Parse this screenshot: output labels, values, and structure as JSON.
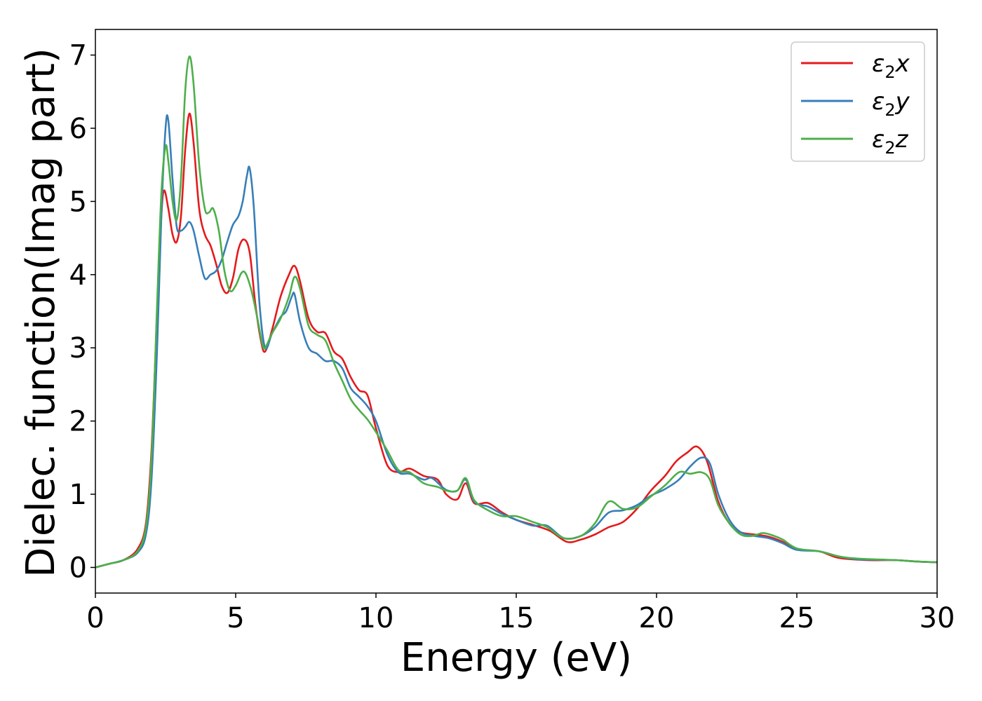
{
  "chart_data": {
    "type": "line",
    "title": "",
    "xlabel": "Energy (eV)",
    "ylabel": "Dielec. function(Imag part)",
    "xlim": [
      0,
      30
    ],
    "ylim": [
      -0.35,
      7.35
    ],
    "xticks": [
      "0",
      "5",
      "10",
      "15",
      "20",
      "25",
      "30"
    ],
    "yticks": [
      "0",
      "1",
      "2",
      "3",
      "4",
      "5",
      "6",
      "7"
    ],
    "grid": false,
    "legend": {
      "placement": "top-right"
    },
    "series": [
      {
        "name": "ε₂x",
        "legend": {
          "base": "ε",
          "sub": "2",
          "suffix": "x"
        },
        "color": "#e41a1c",
        "points": [
          [
            0,
            0
          ],
          [
            0.5,
            0.05
          ],
          [
            1,
            0.1
          ],
          [
            1.5,
            0.25
          ],
          [
            1.8,
            0.6
          ],
          [
            2.0,
            1.6
          ],
          [
            2.2,
            3.5
          ],
          [
            2.35,
            4.8
          ],
          [
            2.45,
            5.15
          ],
          [
            2.6,
            4.9
          ],
          [
            2.75,
            4.55
          ],
          [
            2.9,
            4.45
          ],
          [
            3.05,
            4.8
          ],
          [
            3.2,
            5.7
          ],
          [
            3.35,
            6.2
          ],
          [
            3.5,
            5.8
          ],
          [
            3.7,
            4.9
          ],
          [
            3.9,
            4.55
          ],
          [
            4.1,
            4.4
          ],
          [
            4.3,
            4.15
          ],
          [
            4.5,
            3.85
          ],
          [
            4.7,
            3.75
          ],
          [
            4.9,
            3.95
          ],
          [
            5.1,
            4.35
          ],
          [
            5.3,
            4.48
          ],
          [
            5.5,
            4.3
          ],
          [
            5.7,
            3.6
          ],
          [
            5.9,
            3.1
          ],
          [
            6.05,
            2.95
          ],
          [
            6.3,
            3.25
          ],
          [
            6.6,
            3.7
          ],
          [
            6.9,
            4.0
          ],
          [
            7.1,
            4.12
          ],
          [
            7.3,
            3.9
          ],
          [
            7.6,
            3.4
          ],
          [
            7.9,
            3.22
          ],
          [
            8.2,
            3.2
          ],
          [
            8.5,
            2.95
          ],
          [
            8.8,
            2.85
          ],
          [
            9.1,
            2.6
          ],
          [
            9.4,
            2.42
          ],
          [
            9.7,
            2.35
          ],
          [
            10.0,
            1.9
          ],
          [
            10.4,
            1.4
          ],
          [
            10.8,
            1.3
          ],
          [
            11.2,
            1.35
          ],
          [
            11.7,
            1.25
          ],
          [
            12.2,
            1.2
          ],
          [
            12.5,
            1.0
          ],
          [
            12.9,
            0.93
          ],
          [
            13.2,
            1.15
          ],
          [
            13.5,
            0.88
          ],
          [
            14.0,
            0.88
          ],
          [
            14.5,
            0.75
          ],
          [
            15.0,
            0.65
          ],
          [
            15.6,
            0.58
          ],
          [
            16.2,
            0.5
          ],
          [
            16.8,
            0.35
          ],
          [
            17.3,
            0.38
          ],
          [
            17.8,
            0.45
          ],
          [
            18.3,
            0.55
          ],
          [
            18.8,
            0.62
          ],
          [
            19.3,
            0.8
          ],
          [
            19.8,
            1.05
          ],
          [
            20.3,
            1.25
          ],
          [
            20.7,
            1.45
          ],
          [
            21.1,
            1.57
          ],
          [
            21.45,
            1.65
          ],
          [
            21.8,
            1.45
          ],
          [
            22.2,
            0.9
          ],
          [
            22.6,
            0.6
          ],
          [
            23.0,
            0.48
          ],
          [
            23.5,
            0.45
          ],
          [
            24.0,
            0.42
          ],
          [
            24.5,
            0.35
          ],
          [
            25.0,
            0.25
          ],
          [
            25.8,
            0.22
          ],
          [
            26.5,
            0.13
          ],
          [
            27.5,
            0.1
          ],
          [
            28.5,
            0.1
          ],
          [
            29.3,
            0.08
          ],
          [
            30,
            0.07
          ]
        ]
      },
      {
        "name": "ε₂y",
        "legend": {
          "base": "ε",
          "sub": "2",
          "suffix": "y"
        },
        "color": "#377eb8",
        "points": [
          [
            0,
            0
          ],
          [
            0.5,
            0.05
          ],
          [
            1,
            0.1
          ],
          [
            1.5,
            0.2
          ],
          [
            1.8,
            0.45
          ],
          [
            2.0,
            1.2
          ],
          [
            2.2,
            3.0
          ],
          [
            2.35,
            4.8
          ],
          [
            2.5,
            6.0
          ],
          [
            2.6,
            6.1
          ],
          [
            2.75,
            5.3
          ],
          [
            2.9,
            4.65
          ],
          [
            3.05,
            4.6
          ],
          [
            3.2,
            4.65
          ],
          [
            3.35,
            4.72
          ],
          [
            3.5,
            4.6
          ],
          [
            3.7,
            4.25
          ],
          [
            3.9,
            3.95
          ],
          [
            4.1,
            4.0
          ],
          [
            4.3,
            4.05
          ],
          [
            4.5,
            4.2
          ],
          [
            4.7,
            4.45
          ],
          [
            4.9,
            4.68
          ],
          [
            5.1,
            4.8
          ],
          [
            5.25,
            5.0
          ],
          [
            5.4,
            5.35
          ],
          [
            5.5,
            5.45
          ],
          [
            5.65,
            4.9
          ],
          [
            5.85,
            3.6
          ],
          [
            6.05,
            3.0
          ],
          [
            6.3,
            3.2
          ],
          [
            6.6,
            3.42
          ],
          [
            6.8,
            3.5
          ],
          [
            7.0,
            3.7
          ],
          [
            7.1,
            3.73
          ],
          [
            7.3,
            3.35
          ],
          [
            7.6,
            3.0
          ],
          [
            7.9,
            2.92
          ],
          [
            8.2,
            2.82
          ],
          [
            8.5,
            2.82
          ],
          [
            8.8,
            2.72
          ],
          [
            9.1,
            2.45
          ],
          [
            9.4,
            2.33
          ],
          [
            9.7,
            2.2
          ],
          [
            10.0,
            2.0
          ],
          [
            10.4,
            1.55
          ],
          [
            10.8,
            1.3
          ],
          [
            11.2,
            1.28
          ],
          [
            11.7,
            1.2
          ],
          [
            12.0,
            1.22
          ],
          [
            12.5,
            1.06
          ],
          [
            12.9,
            1.05
          ],
          [
            13.2,
            1.2
          ],
          [
            13.5,
            0.9
          ],
          [
            14.0,
            0.83
          ],
          [
            14.5,
            0.73
          ],
          [
            15.0,
            0.65
          ],
          [
            15.6,
            0.57
          ],
          [
            16.1,
            0.57
          ],
          [
            16.7,
            0.4
          ],
          [
            17.3,
            0.43
          ],
          [
            17.8,
            0.55
          ],
          [
            18.3,
            0.75
          ],
          [
            18.8,
            0.78
          ],
          [
            19.3,
            0.85
          ],
          [
            19.8,
            0.98
          ],
          [
            20.3,
            1.07
          ],
          [
            20.8,
            1.2
          ],
          [
            21.2,
            1.38
          ],
          [
            21.6,
            1.5
          ],
          [
            21.9,
            1.42
          ],
          [
            22.2,
            1.0
          ],
          [
            22.6,
            0.65
          ],
          [
            23.0,
            0.48
          ],
          [
            23.5,
            0.43
          ],
          [
            24.0,
            0.4
          ],
          [
            24.5,
            0.33
          ],
          [
            25.0,
            0.24
          ],
          [
            25.8,
            0.22
          ],
          [
            26.5,
            0.15
          ],
          [
            27.2,
            0.11
          ],
          [
            28.5,
            0.1
          ],
          [
            29.3,
            0.08
          ],
          [
            30,
            0.07
          ]
        ]
      },
      {
        "name": "ε₂z",
        "legend": {
          "base": "ε",
          "sub": "2",
          "suffix": "z"
        },
        "color": "#4daf4a",
        "points": [
          [
            0,
            0
          ],
          [
            0.5,
            0.05
          ],
          [
            1,
            0.1
          ],
          [
            1.5,
            0.22
          ],
          [
            1.8,
            0.55
          ],
          [
            2.0,
            1.5
          ],
          [
            2.2,
            3.6
          ],
          [
            2.35,
            5.1
          ],
          [
            2.5,
            5.75
          ],
          [
            2.6,
            5.55
          ],
          [
            2.75,
            5.0
          ],
          [
            2.9,
            4.75
          ],
          [
            3.05,
            5.3
          ],
          [
            3.2,
            6.5
          ],
          [
            3.35,
            6.98
          ],
          [
            3.5,
            6.6
          ],
          [
            3.7,
            5.5
          ],
          [
            3.9,
            4.9
          ],
          [
            4.05,
            4.85
          ],
          [
            4.2,
            4.9
          ],
          [
            4.4,
            4.6
          ],
          [
            4.6,
            4.05
          ],
          [
            4.8,
            3.78
          ],
          [
            5.0,
            3.85
          ],
          [
            5.2,
            4.02
          ],
          [
            5.35,
            4.02
          ],
          [
            5.55,
            3.8
          ],
          [
            5.75,
            3.45
          ],
          [
            5.95,
            3.05
          ],
          [
            6.05,
            3.0
          ],
          [
            6.3,
            3.2
          ],
          [
            6.6,
            3.4
          ],
          [
            6.9,
            3.7
          ],
          [
            7.1,
            3.97
          ],
          [
            7.3,
            3.8
          ],
          [
            7.6,
            3.3
          ],
          [
            7.9,
            3.18
          ],
          [
            8.2,
            3.1
          ],
          [
            8.5,
            2.8
          ],
          [
            8.8,
            2.55
          ],
          [
            9.1,
            2.3
          ],
          [
            9.4,
            2.15
          ],
          [
            9.7,
            2.02
          ],
          [
            10.0,
            1.85
          ],
          [
            10.4,
            1.6
          ],
          [
            10.8,
            1.33
          ],
          [
            11.2,
            1.3
          ],
          [
            11.7,
            1.15
          ],
          [
            12.2,
            1.1
          ],
          [
            12.5,
            1.05
          ],
          [
            12.9,
            1.05
          ],
          [
            13.2,
            1.22
          ],
          [
            13.5,
            0.92
          ],
          [
            14.0,
            0.78
          ],
          [
            14.5,
            0.7
          ],
          [
            15.0,
            0.7
          ],
          [
            15.6,
            0.62
          ],
          [
            16.1,
            0.55
          ],
          [
            16.7,
            0.4
          ],
          [
            17.3,
            0.43
          ],
          [
            17.8,
            0.6
          ],
          [
            18.3,
            0.9
          ],
          [
            18.8,
            0.8
          ],
          [
            19.3,
            0.82
          ],
          [
            19.8,
            0.97
          ],
          [
            20.3,
            1.12
          ],
          [
            20.8,
            1.3
          ],
          [
            21.2,
            1.28
          ],
          [
            21.6,
            1.3
          ],
          [
            21.9,
            1.2
          ],
          [
            22.2,
            0.85
          ],
          [
            22.6,
            0.6
          ],
          [
            23.0,
            0.45
          ],
          [
            23.4,
            0.43
          ],
          [
            23.8,
            0.47
          ],
          [
            24.2,
            0.43
          ],
          [
            24.5,
            0.38
          ],
          [
            25.0,
            0.26
          ],
          [
            25.8,
            0.22
          ],
          [
            26.5,
            0.15
          ],
          [
            27.2,
            0.12
          ],
          [
            28.5,
            0.1
          ],
          [
            29.3,
            0.08
          ],
          [
            30,
            0.07
          ]
        ]
      }
    ]
  }
}
